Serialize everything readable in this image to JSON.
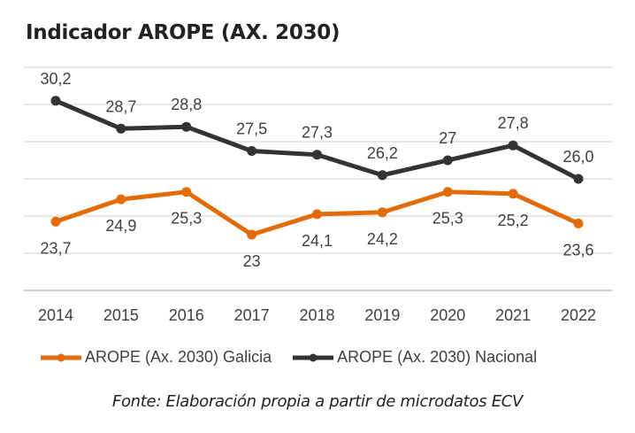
{
  "chart_data": {
    "type": "line",
    "title": "Indicador AROPE (AX. 2030)",
    "xlabel": "",
    "ylabel": "",
    "categories": [
      "2014",
      "2015",
      "2016",
      "2017",
      "2018",
      "2019",
      "2020",
      "2021",
      "2022"
    ],
    "ylim": [
      20,
      32
    ],
    "y_gridlines": [
      22,
      24,
      26,
      28,
      30,
      32
    ],
    "grid": true,
    "legend_position": "bottom",
    "series": [
      {
        "name": "AROPE (Ax. 2030) Galicia",
        "color": "#E36C0A",
        "values": [
          23.7,
          24.9,
          25.3,
          23.0,
          24.1,
          24.2,
          25.3,
          25.2,
          23.6
        ],
        "labels": [
          "23,7",
          "24,9",
          "25,3",
          "23",
          "24,1",
          "24,2",
          "25,3",
          "25,2",
          "23,6"
        ],
        "label_position": "below"
      },
      {
        "name": "AROPE (Ax. 2030) Nacional",
        "color": "#333333",
        "values": [
          30.2,
          28.7,
          28.8,
          27.5,
          27.3,
          26.2,
          27.0,
          27.8,
          26.0
        ],
        "labels": [
          "30,2",
          "28,7",
          "28,8",
          "27,5",
          "27,3",
          "26,2",
          "27",
          "27,8",
          "26,0"
        ],
        "label_position": "above"
      }
    ],
    "source": "Fonte: Elaboración propia a partir de microdatos ECV"
  }
}
